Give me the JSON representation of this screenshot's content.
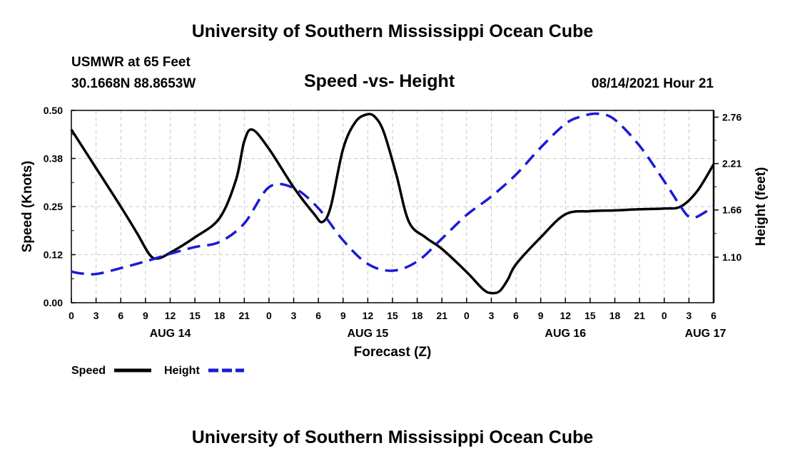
{
  "page_title": "University of Southern Mississippi Ocean Cube",
  "footer_title": "University of Southern Mississippi Ocean Cube",
  "station": "USMWR at 65 Feet",
  "coords": "30.1668N  88.8653W",
  "datetime": "08/14/2021 Hour 21",
  "chart_data": {
    "type": "line",
    "title": "Speed -vs- Height",
    "xlabel": "Forecast (Z)",
    "ylabel": "Speed (Knots)",
    "y2label": "Height (feet)",
    "xlim": [
      0,
      78
    ],
    "ylim": [
      0,
      0.5
    ],
    "y2lim": [
      0.56,
      2.84
    ],
    "x_ticks": [
      {
        "pos": 0,
        "label": "0"
      },
      {
        "pos": 3,
        "label": "3"
      },
      {
        "pos": 6,
        "label": "6"
      },
      {
        "pos": 9,
        "label": "9"
      },
      {
        "pos": 12,
        "label": "12"
      },
      {
        "pos": 15,
        "label": "15"
      },
      {
        "pos": 18,
        "label": "18"
      },
      {
        "pos": 21,
        "label": "21"
      },
      {
        "pos": 24,
        "label": "0"
      },
      {
        "pos": 27,
        "label": "3"
      },
      {
        "pos": 30,
        "label": "6"
      },
      {
        "pos": 33,
        "label": "9"
      },
      {
        "pos": 36,
        "label": "12"
      },
      {
        "pos": 39,
        "label": "15"
      },
      {
        "pos": 42,
        "label": "18"
      },
      {
        "pos": 45,
        "label": "21"
      },
      {
        "pos": 48,
        "label": "0"
      },
      {
        "pos": 51,
        "label": "3"
      },
      {
        "pos": 54,
        "label": "6"
      },
      {
        "pos": 57,
        "label": "9"
      },
      {
        "pos": 60,
        "label": "12"
      },
      {
        "pos": 63,
        "label": "15"
      },
      {
        "pos": 66,
        "label": "18"
      },
      {
        "pos": 69,
        "label": "21"
      },
      {
        "pos": 72,
        "label": "0"
      },
      {
        "pos": 75,
        "label": "3"
      },
      {
        "pos": 78,
        "label": "6"
      }
    ],
    "date_labels": [
      {
        "pos": 12,
        "label": "AUG 14"
      },
      {
        "pos": 36,
        "label": "AUG 15"
      },
      {
        "pos": 60,
        "label": "AUG 16"
      },
      {
        "pos": 77,
        "label": "AUG 17"
      }
    ],
    "y_ticks": [
      "0.00",
      "0.12",
      "0.25",
      "0.38",
      "0.50"
    ],
    "y_tick_values": [
      0,
      0.125,
      0.25,
      0.375,
      0.5
    ],
    "y2_ticks": [
      "1.10",
      "1.66",
      "2.21",
      "2.76"
    ],
    "y2_tick_values": [
      1.1,
      1.66,
      2.21,
      2.76
    ],
    "series": [
      {
        "name": "Speed",
        "axis": "left",
        "color": "#000000",
        "dash": "solid",
        "x": [
          0,
          3,
          6,
          8,
          9.5,
          10.5,
          12,
          15,
          18,
          20,
          21,
          22,
          24,
          27,
          29.5,
          30.5,
          31.5,
          33,
          34.5,
          36,
          37,
          38,
          39.5,
          41,
          43,
          45,
          48,
          50,
          51,
          52,
          53,
          54,
          57,
          60,
          63,
          66,
          69,
          72,
          74,
          76,
          78
        ],
        "values": [
          0.45,
          0.35,
          0.25,
          0.18,
          0.125,
          0.115,
          0.13,
          0.17,
          0.22,
          0.32,
          0.42,
          0.45,
          0.4,
          0.3,
          0.23,
          0.21,
          0.25,
          0.4,
          0.47,
          0.49,
          0.48,
          0.44,
          0.33,
          0.21,
          0.17,
          0.14,
          0.08,
          0.035,
          0.025,
          0.03,
          0.06,
          0.1,
          0.17,
          0.23,
          0.238,
          0.24,
          0.243,
          0.245,
          0.25,
          0.29,
          0.36
        ]
      },
      {
        "name": "Height",
        "axis": "right",
        "color": "#1a1ad6",
        "dash": "dashed",
        "x": [
          0,
          1,
          3,
          6,
          9,
          12,
          15,
          18,
          21,
          24,
          27,
          30,
          33,
          36,
          39,
          42,
          45,
          48,
          51,
          54,
          57,
          60,
          62,
          64,
          66,
          69,
          72,
          74,
          75,
          76,
          78
        ],
        "values": [
          0.93,
          0.91,
          0.9,
          0.97,
          1.05,
          1.14,
          1.22,
          1.28,
          1.5,
          1.93,
          1.92,
          1.68,
          1.3,
          1.02,
          0.94,
          1.05,
          1.32,
          1.6,
          1.82,
          2.08,
          2.4,
          2.68,
          2.77,
          2.8,
          2.73,
          2.42,
          2.0,
          1.7,
          1.58,
          1.58,
          1.7
        ]
      }
    ],
    "legend": [
      {
        "label": "Speed",
        "color": "#000000",
        "dash": "solid"
      },
      {
        "label": "Height",
        "color": "#1a1ad6",
        "dash": "dashed"
      }
    ],
    "grid": true
  }
}
